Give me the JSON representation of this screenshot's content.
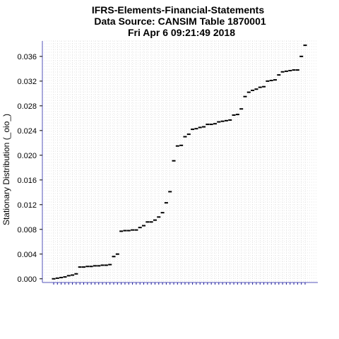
{
  "chart_data": {
    "type": "scatter",
    "title": "IFRS-Elements-Financial-Statements",
    "subtitle_lines": [
      "Data Source: CANSIM Table 1870001",
      "Fri Apr  6 09:21:49 2018"
    ],
    "xlabel": "",
    "ylabel": "Stationary Distribution (_oio_)",
    "y_ticks": [
      "0.000",
      "0.004",
      "0.008",
      "0.012",
      "0.016",
      "0.020",
      "0.024",
      "0.028",
      "0.032",
      "0.036"
    ],
    "ylim": [
      -0.0006,
      0.0385
    ],
    "grid": true,
    "legend": "none",
    "colors": {
      "points": "#000000",
      "axis": "#5555bb",
      "tick_labels": "#1a1a9a",
      "grid": "#cccccc"
    },
    "series": [
      {
        "values": [
          0.0,
          0.0001,
          0.0002,
          0.0003,
          0.0005,
          0.0006,
          0.0008,
          0.0019,
          0.0019,
          0.002,
          0.002,
          0.0021,
          0.0021,
          0.0022,
          0.0022,
          0.0023,
          0.0036,
          0.004,
          0.0077,
          0.0078,
          0.0078,
          0.0079,
          0.0079,
          0.0083,
          0.0086,
          0.0092,
          0.0092,
          0.0095,
          0.01,
          0.0107,
          0.0123,
          0.0141,
          0.0191,
          0.0215,
          0.0216,
          0.023,
          0.0234,
          0.0242,
          0.0243,
          0.0245,
          0.0246,
          0.025,
          0.025,
          0.0251,
          0.0254,
          0.0255,
          0.0256,
          0.0257,
          0.0265,
          0.0266,
          0.0275,
          0.0295,
          0.0302,
          0.0305,
          0.0307,
          0.031,
          0.0311,
          0.032,
          0.0321,
          0.0322,
          0.033,
          0.0335,
          0.0336,
          0.0337,
          0.0338,
          0.0338,
          0.036,
          0.0378
        ]
      }
    ]
  }
}
